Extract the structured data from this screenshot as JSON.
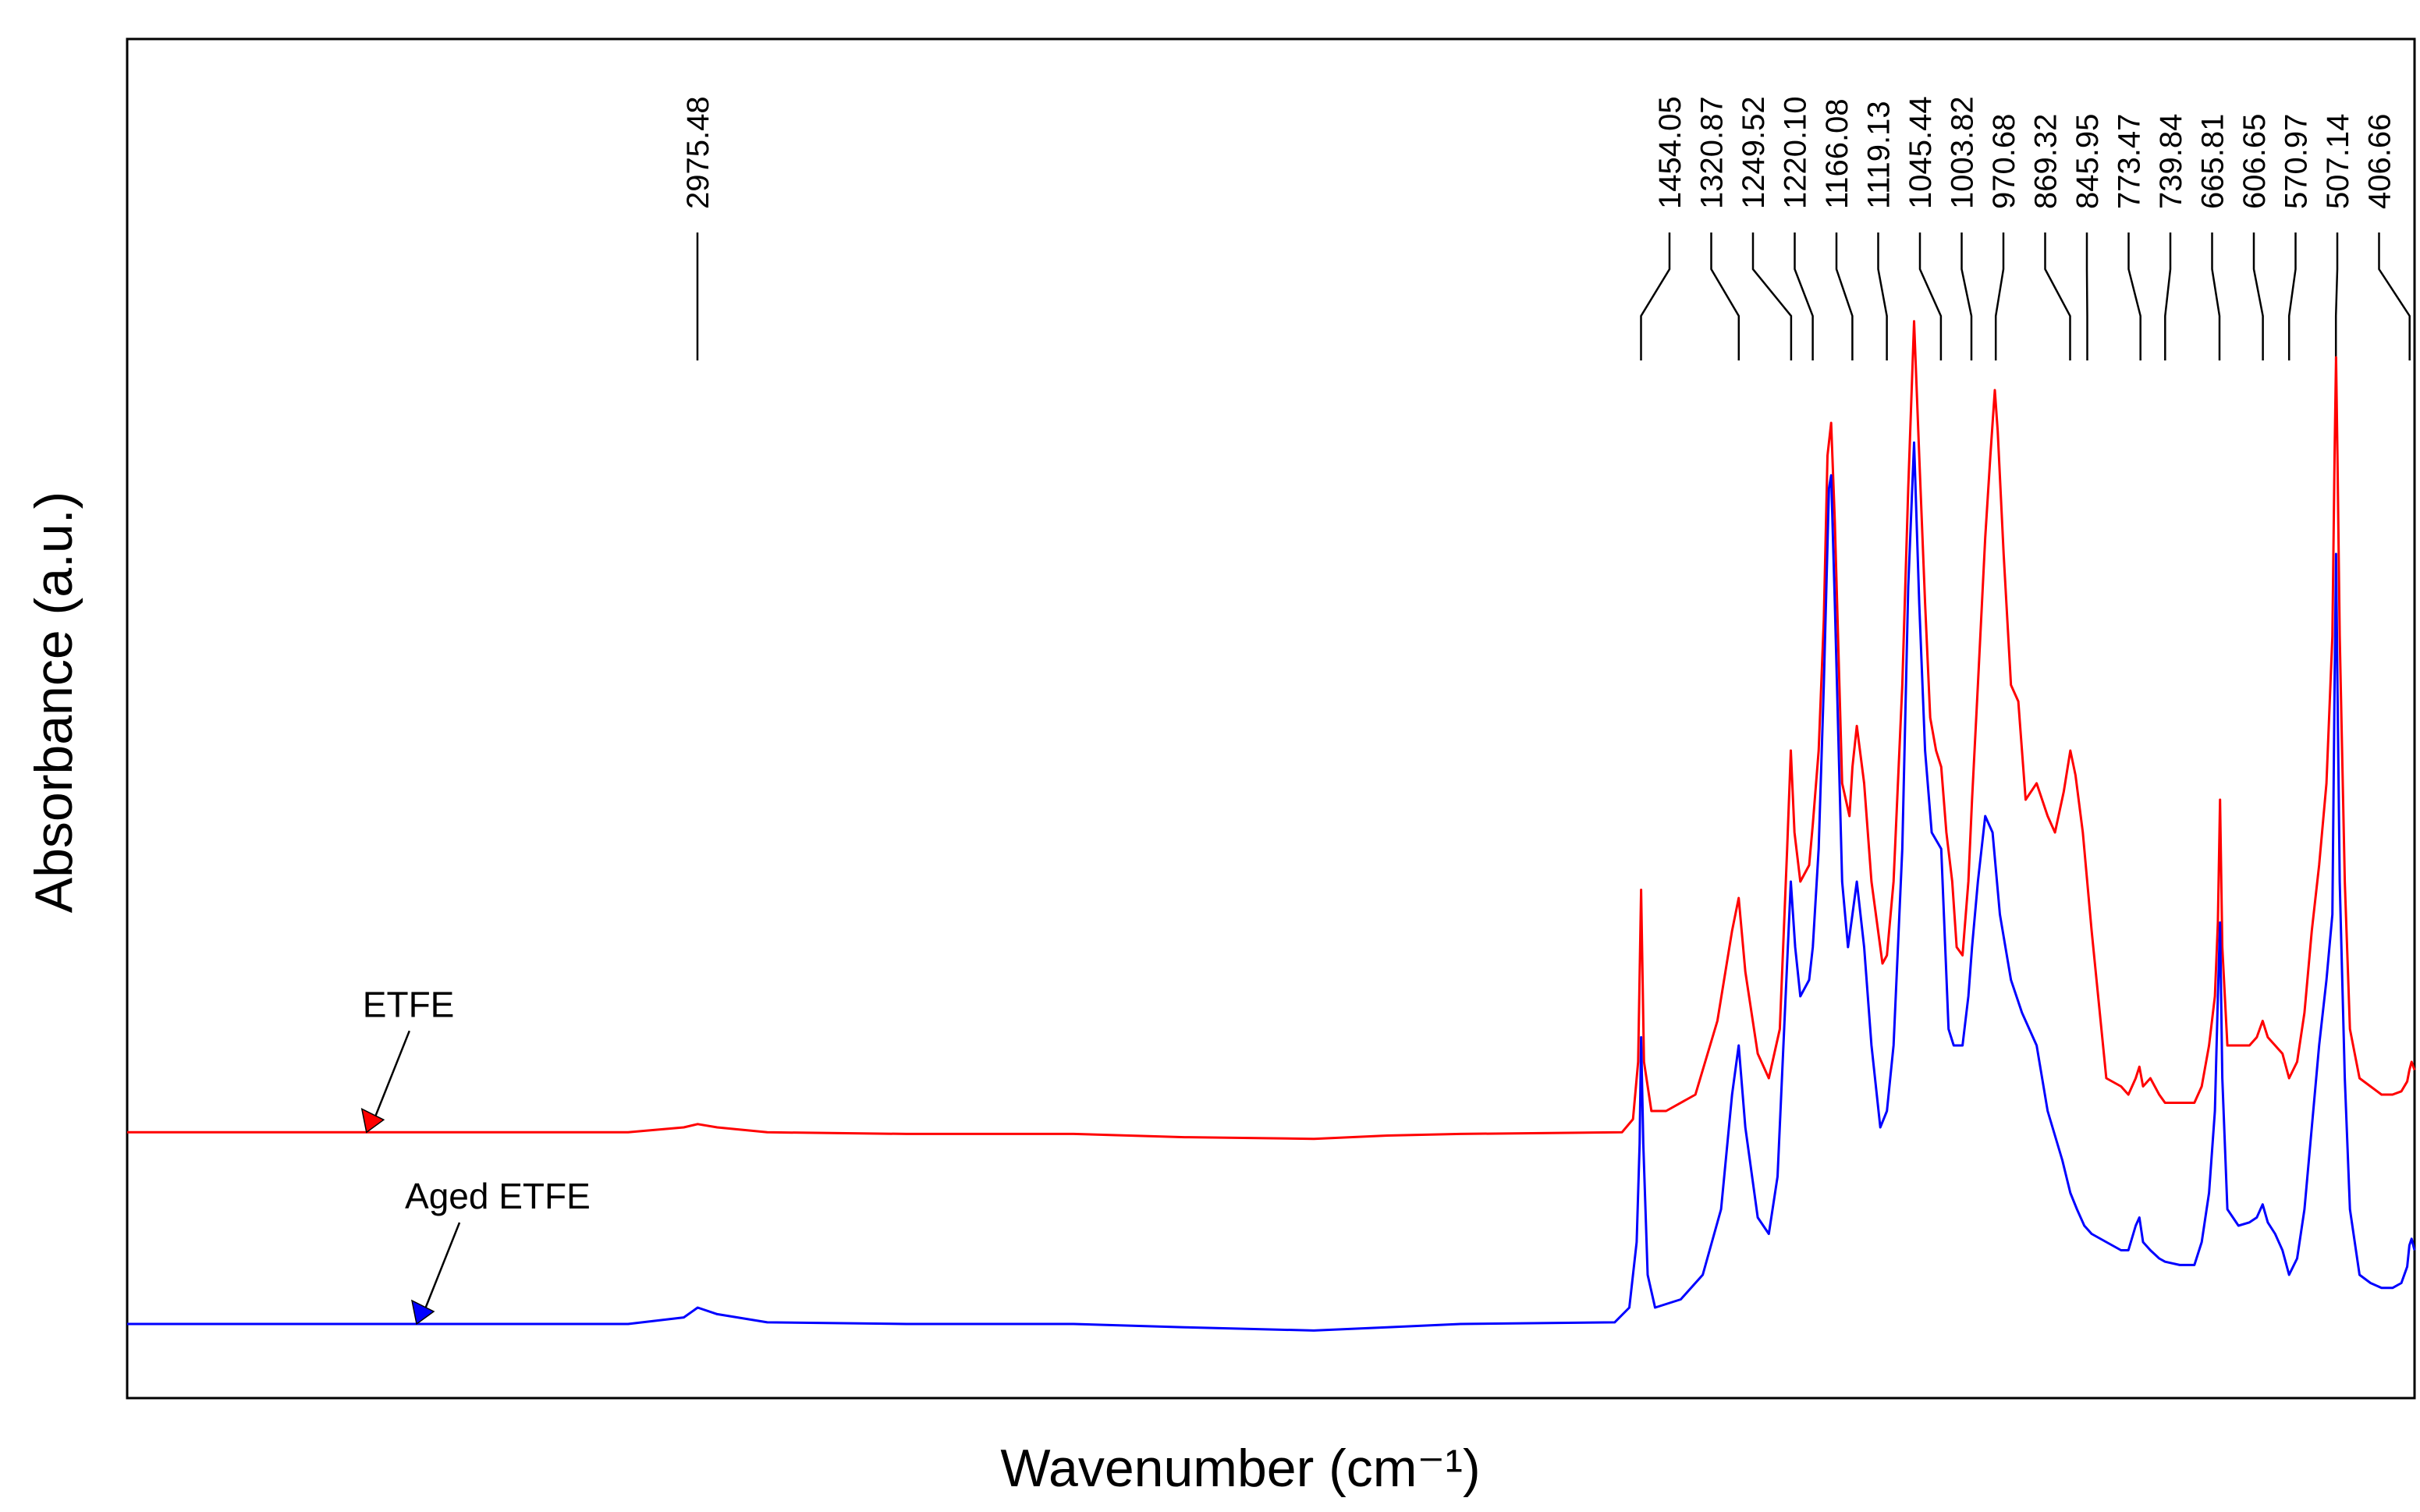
{
  "chart_data": {
    "type": "line",
    "title": "",
    "xlabel": "Wavenumber (cm⁻¹)",
    "ylabel": "Absorbance (a.u.)",
    "xlim": [
      4000,
      400
    ],
    "x_reversed": true,
    "ylim": [
      0,
      1
    ],
    "grid": false,
    "legend": "annotation arrows",
    "peak_labels": [
      "2975.48",
      "1454.05",
      "1320.87",
      "1249.52",
      "1220.10",
      "1166.08",
      "1119.13",
      "1045.44",
      "1003.82",
      "970.68",
      "869.32",
      "845.95",
      "773.47",
      "739.84",
      "665.81",
      "606.65",
      "570.97",
      "507.14",
      "406.66"
    ],
    "peak_markers": [
      2975.48,
      1454.05,
      1320.87,
      1249.52,
      1220.1,
      1166.08,
      1119.13,
      1045.44,
      1003.82,
      970.68,
      869.32,
      845.95,
      773.47,
      739.84,
      665.81,
      606.65,
      570.97,
      507.14,
      406.66
    ],
    "series": [
      {
        "name": "ETFE",
        "label": "ETFE",
        "color": "#ff0000",
        "arrow_x": 3570,
        "points": [
          [
            4000,
            0.147
          ],
          [
            3800,
            0.147
          ],
          [
            3600,
            0.147
          ],
          [
            3400,
            0.147
          ],
          [
            3100,
            0.147
          ],
          [
            3000,
            0.15
          ],
          [
            2975,
            0.152
          ],
          [
            2940,
            0.15
          ],
          [
            2850,
            0.147
          ],
          [
            2600,
            0.146
          ],
          [
            2300,
            0.146
          ],
          [
            2100,
            0.144
          ],
          [
            1900,
            0.143
          ],
          [
            1800,
            0.145
          ],
          [
            1700,
            0.146
          ],
          [
            1480,
            0.147
          ],
          [
            1465,
            0.155
          ],
          [
            1458,
            0.19
          ],
          [
            1454,
            0.295
          ],
          [
            1450,
            0.19
          ],
          [
            1440,
            0.16
          ],
          [
            1420,
            0.16
          ],
          [
            1380,
            0.17
          ],
          [
            1350,
            0.215
          ],
          [
            1330,
            0.27
          ],
          [
            1321,
            0.29
          ],
          [
            1312,
            0.245
          ],
          [
            1295,
            0.195
          ],
          [
            1280,
            0.18
          ],
          [
            1265,
            0.21
          ],
          [
            1255,
            0.32
          ],
          [
            1250,
            0.38
          ],
          [
            1245,
            0.33
          ],
          [
            1237,
            0.3
          ],
          [
            1225,
            0.31
          ],
          [
            1220,
            0.335
          ],
          [
            1212,
            0.38
          ],
          [
            1205,
            0.46
          ],
          [
            1200,
            0.56
          ],
          [
            1195,
            0.58
          ],
          [
            1190,
            0.52
          ],
          [
            1180,
            0.36
          ],
          [
            1170,
            0.34
          ],
          [
            1166,
            0.37
          ],
          [
            1160,
            0.395
          ],
          [
            1150,
            0.36
          ],
          [
            1140,
            0.3
          ],
          [
            1125,
            0.25
          ],
          [
            1119,
            0.255
          ],
          [
            1110,
            0.3
          ],
          [
            1098,
            0.42
          ],
          [
            1090,
            0.54
          ],
          [
            1082,
            0.642
          ],
          [
            1075,
            0.56
          ],
          [
            1067,
            0.47
          ],
          [
            1060,
            0.4
          ],
          [
            1052,
            0.38
          ],
          [
            1045,
            0.37
          ],
          [
            1038,
            0.33
          ],
          [
            1030,
            0.3
          ],
          [
            1024,
            0.26
          ],
          [
            1016,
            0.255
          ],
          [
            1008,
            0.3
          ],
          [
            1003,
            0.35
          ],
          [
            995,
            0.42
          ],
          [
            985,
            0.51
          ],
          [
            978,
            0.56
          ],
          [
            972,
            0.6
          ],
          [
            968,
            0.575
          ],
          [
            960,
            0.5
          ],
          [
            950,
            0.42
          ],
          [
            940,
            0.41
          ],
          [
            930,
            0.35
          ],
          [
            915,
            0.36
          ],
          [
            900,
            0.34
          ],
          [
            890,
            0.33
          ],
          [
            878,
            0.355
          ],
          [
            869,
            0.38
          ],
          [
            862,
            0.365
          ],
          [
            852,
            0.33
          ],
          [
            840,
            0.27
          ],
          [
            820,
            0.18
          ],
          [
            800,
            0.175
          ],
          [
            790,
            0.17
          ],
          [
            780,
            0.18
          ],
          [
            775,
            0.187
          ],
          [
            770,
            0.175
          ],
          [
            760,
            0.18
          ],
          [
            748,
            0.17
          ],
          [
            740,
            0.165
          ],
          [
            720,
            0.165
          ],
          [
            700,
            0.165
          ],
          [
            690,
            0.175
          ],
          [
            680,
            0.2
          ],
          [
            672,
            0.23
          ],
          [
            668,
            0.275
          ],
          [
            665,
            0.35
          ],
          [
            662,
            0.26
          ],
          [
            655,
            0.2
          ],
          [
            640,
            0.2
          ],
          [
            625,
            0.2
          ],
          [
            615,
            0.205
          ],
          [
            607,
            0.215
          ],
          [
            600,
            0.205
          ],
          [
            590,
            0.2
          ],
          [
            580,
            0.195
          ],
          [
            571,
            0.18
          ],
          [
            560,
            0.19
          ],
          [
            550,
            0.22
          ],
          [
            540,
            0.27
          ],
          [
            530,
            0.31
          ],
          [
            520,
            0.36
          ],
          [
            512,
            0.45
          ],
          [
            509,
            0.56
          ],
          [
            507,
            0.62
          ],
          [
            505,
            0.56
          ],
          [
            502,
            0.45
          ],
          [
            495,
            0.3
          ],
          [
            488,
            0.21
          ],
          [
            475,
            0.18
          ],
          [
            460,
            0.175
          ],
          [
            445,
            0.17
          ],
          [
            430,
            0.17
          ],
          [
            418,
            0.172
          ],
          [
            410,
            0.178
          ],
          [
            407,
            0.185
          ],
          [
            404,
            0.19
          ],
          [
            400,
            0.185
          ]
        ]
      },
      {
        "name": "Aged ETFE",
        "label": "Aged ETFE",
        "color": "#0000ff",
        "arrow_x": 3480,
        "points": [
          [
            4000,
            0.03
          ],
          [
            3800,
            0.03
          ],
          [
            3600,
            0.03
          ],
          [
            3400,
            0.03
          ],
          [
            3100,
            0.03
          ],
          [
            3000,
            0.034
          ],
          [
            2975,
            0.04
          ],
          [
            2940,
            0.036
          ],
          [
            2850,
            0.031
          ],
          [
            2600,
            0.03
          ],
          [
            2300,
            0.03
          ],
          [
            2100,
            0.028
          ],
          [
            1900,
            0.026
          ],
          [
            1800,
            0.028
          ],
          [
            1700,
            0.03
          ],
          [
            1490,
            0.031
          ],
          [
            1470,
            0.04
          ],
          [
            1460,
            0.08
          ],
          [
            1456,
            0.14
          ],
          [
            1454,
            0.205
          ],
          [
            1451,
            0.14
          ],
          [
            1445,
            0.06
          ],
          [
            1435,
            0.04
          ],
          [
            1400,
            0.045
          ],
          [
            1370,
            0.06
          ],
          [
            1345,
            0.1
          ],
          [
            1330,
            0.17
          ],
          [
            1321,
            0.2
          ],
          [
            1312,
            0.15
          ],
          [
            1295,
            0.095
          ],
          [
            1280,
            0.085
          ],
          [
            1268,
            0.12
          ],
          [
            1258,
            0.22
          ],
          [
            1250,
            0.3
          ],
          [
            1244,
            0.26
          ],
          [
            1237,
            0.23
          ],
          [
            1225,
            0.24
          ],
          [
            1220,
            0.26
          ],
          [
            1212,
            0.32
          ],
          [
            1205,
            0.42
          ],
          [
            1198,
            0.54
          ],
          [
            1195,
            0.548
          ],
          [
            1190,
            0.47
          ],
          [
            1180,
            0.3
          ],
          [
            1172,
            0.26
          ],
          [
            1166,
            0.28
          ],
          [
            1160,
            0.3
          ],
          [
            1150,
            0.26
          ],
          [
            1140,
            0.2
          ],
          [
            1128,
            0.15
          ],
          [
            1119,
            0.16
          ],
          [
            1110,
            0.2
          ],
          [
            1098,
            0.32
          ],
          [
            1090,
            0.48
          ],
          [
            1082,
            0.568
          ],
          [
            1075,
            0.47
          ],
          [
            1067,
            0.38
          ],
          [
            1058,
            0.33
          ],
          [
            1045,
            0.32
          ],
          [
            1035,
            0.21
          ],
          [
            1028,
            0.2
          ],
          [
            1016,
            0.2
          ],
          [
            1008,
            0.23
          ],
          [
            1003,
            0.26
          ],
          [
            995,
            0.3
          ],
          [
            985,
            0.34
          ],
          [
            975,
            0.33
          ],
          [
            965,
            0.28
          ],
          [
            950,
            0.24
          ],
          [
            935,
            0.22
          ],
          [
            915,
            0.2
          ],
          [
            900,
            0.16
          ],
          [
            880,
            0.13
          ],
          [
            869,
            0.11
          ],
          [
            860,
            0.1
          ],
          [
            850,
            0.09
          ],
          [
            840,
            0.085
          ],
          [
            820,
            0.08
          ],
          [
            800,
            0.075
          ],
          [
            790,
            0.075
          ],
          [
            780,
            0.09
          ],
          [
            775,
            0.095
          ],
          [
            770,
            0.08
          ],
          [
            760,
            0.075
          ],
          [
            748,
            0.07
          ],
          [
            740,
            0.068
          ],
          [
            720,
            0.066
          ],
          [
            700,
            0.066
          ],
          [
            690,
            0.08
          ],
          [
            680,
            0.11
          ],
          [
            672,
            0.16
          ],
          [
            668,
            0.23
          ],
          [
            665,
            0.275
          ],
          [
            662,
            0.18
          ],
          [
            655,
            0.1
          ],
          [
            640,
            0.09
          ],
          [
            625,
            0.092
          ],
          [
            615,
            0.095
          ],
          [
            607,
            0.103
          ],
          [
            600,
            0.092
          ],
          [
            590,
            0.085
          ],
          [
            580,
            0.075
          ],
          [
            571,
            0.06
          ],
          [
            560,
            0.07
          ],
          [
            550,
            0.1
          ],
          [
            540,
            0.15
          ],
          [
            530,
            0.2
          ],
          [
            520,
            0.24
          ],
          [
            512,
            0.28
          ],
          [
            509,
            0.42
          ],
          [
            507,
            0.5
          ],
          [
            505,
            0.42
          ],
          [
            502,
            0.3
          ],
          [
            495,
            0.18
          ],
          [
            488,
            0.1
          ],
          [
            475,
            0.06
          ],
          [
            460,
            0.055
          ],
          [
            445,
            0.052
          ],
          [
            430,
            0.052
          ],
          [
            418,
            0.055
          ],
          [
            410,
            0.065
          ],
          [
            407,
            0.078
          ],
          [
            404,
            0.082
          ],
          [
            400,
            0.075
          ]
        ]
      }
    ]
  }
}
